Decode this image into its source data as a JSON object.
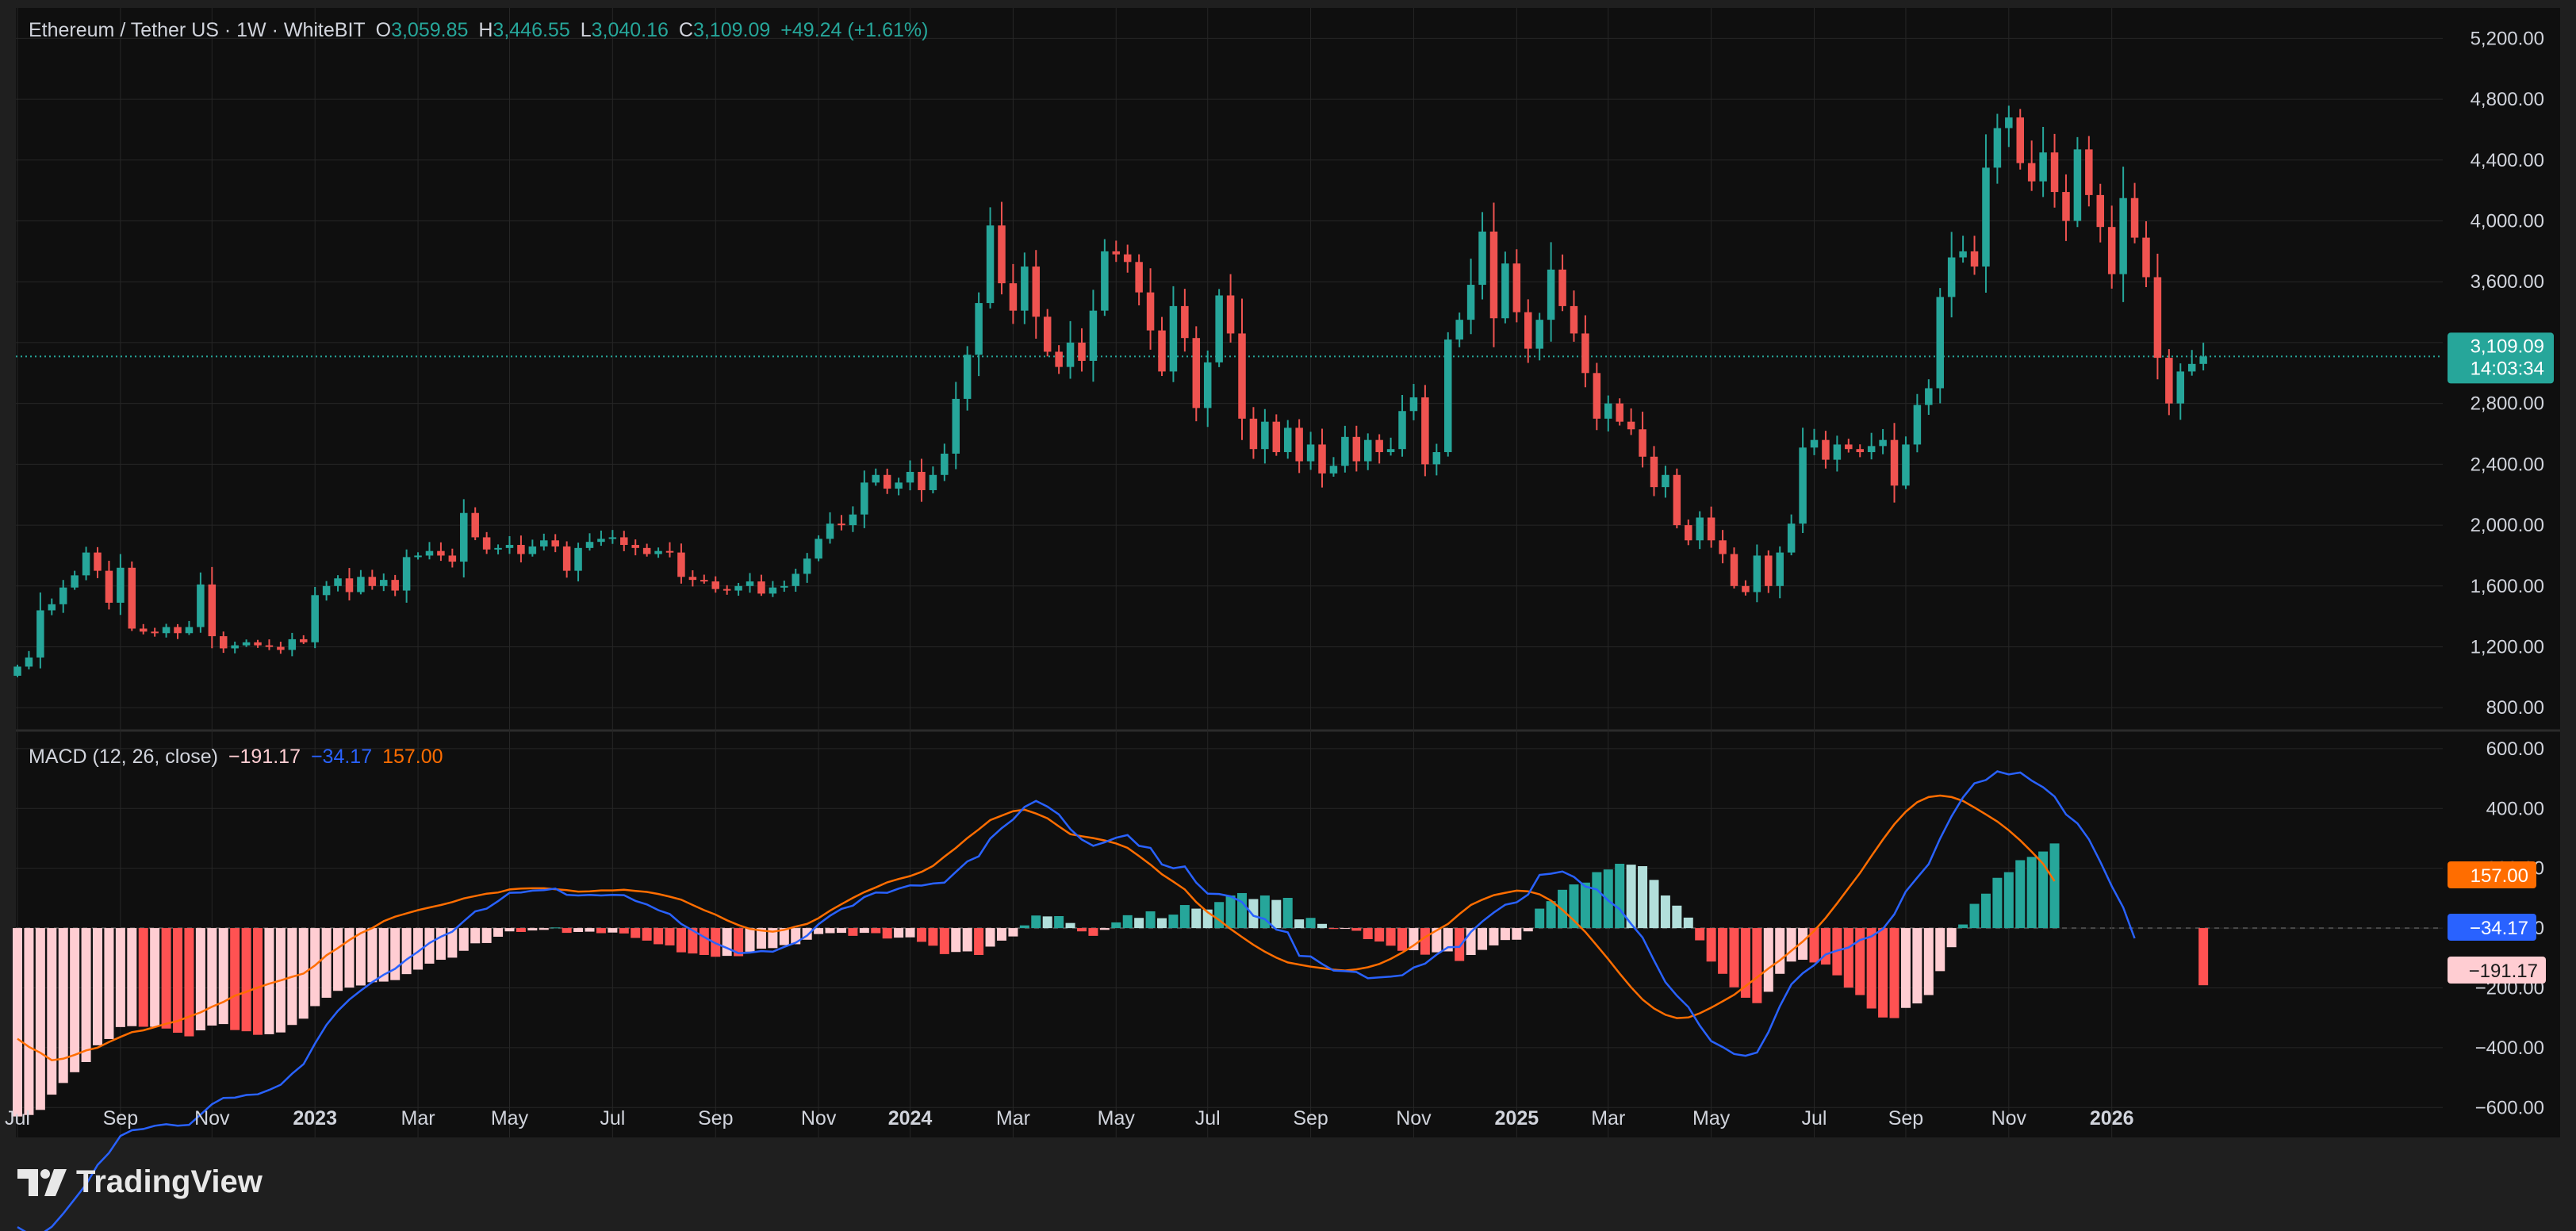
{
  "colors": {
    "up": "#26a69a",
    "down": "#ef5350",
    "macd": "#2962ff",
    "signal": "#ff6d00",
    "hist_up_strong": "#26a69a",
    "hist_up_weak": "#b2dfdb",
    "hist_down_strong": "#ff5252",
    "hist_down_weak": "#ffcdd2",
    "background": "#0f0f0f",
    "grid": "#262626",
    "text": "#d1d4dc"
  },
  "legend": {
    "symbol": "Ethereum / Tether US · 1W · WhiteBIT",
    "o_label": "O",
    "o_value": "3,059.85",
    "h_label": "H",
    "h_value": "3,446.55",
    "l_label": "L",
    "l_value": "3,040.16",
    "c_label": "C",
    "c_value": "3,109.09",
    "change": "+49.24 (+1.61%)"
  },
  "macd_legend": {
    "name": "MACD (12, 26, close)",
    "hist": "−191.17",
    "macd": "−34.17",
    "signal": "157.00"
  },
  "price_badge": {
    "price": "3,109.09",
    "countdown": "14:03:34"
  },
  "macd_badges": {
    "signal": "157.00",
    "macd": "−34.17",
    "hist": "−191.17"
  },
  "brand": {
    "name": "TradingView"
  },
  "chart_data": [
    {
      "type": "candlestick",
      "title": "Ethereum / Tether US · 1W · WhiteBIT",
      "interval": "1W",
      "y_ticks": [
        "5,200.00",
        "4,800.00",
        "4,400.00",
        "4,000.00",
        "3,600.00",
        "3,200.00",
        "2,800.00",
        "2,400.00",
        "2,000.00",
        "1,600.00",
        "1,200.00",
        "800.00"
      ],
      "y_tick_values": [
        5200,
        4800,
        4400,
        4000,
        3600,
        3200,
        2800,
        2400,
        2000,
        1600,
        1200,
        800
      ],
      "ylim": [
        650,
        5400
      ],
      "x_ticks": [
        {
          "label": "Jul",
          "i": 0
        },
        {
          "label": "Sep",
          "i": 9
        },
        {
          "label": "Nov",
          "i": 17
        },
        {
          "label": "2023",
          "i": 26,
          "bold": true
        },
        {
          "label": "Mar",
          "i": 35
        },
        {
          "label": "May",
          "i": 43
        },
        {
          "label": "Jul",
          "i": 52
        },
        {
          "label": "Sep",
          "i": 61
        },
        {
          "label": "Nov",
          "i": 70
        },
        {
          "label": "2024",
          "i": 78,
          "bold": true
        },
        {
          "label": "Mar",
          "i": 87
        },
        {
          "label": "May",
          "i": 96
        },
        {
          "label": "Jul",
          "i": 104
        },
        {
          "label": "Sep",
          "i": 113
        },
        {
          "label": "Nov",
          "i": 122
        },
        {
          "label": "2025",
          "i": 131,
          "bold": true
        },
        {
          "label": "Mar",
          "i": 139
        },
        {
          "label": "May",
          "i": 148
        },
        {
          "label": "Jul",
          "i": 157
        },
        {
          "label": "Sep",
          "i": 165
        },
        {
          "label": "Nov",
          "i": 174
        },
        {
          "label": "2026",
          "i": 183,
          "bold": true
        }
      ],
      "last_price": 3109.09,
      "closes": [
        1070,
        1130,
        1440,
        1480,
        1590,
        1670,
        1820,
        1700,
        1490,
        1720,
        1320,
        1300,
        1290,
        1330,
        1290,
        1330,
        1610,
        1270,
        1190,
        1210,
        1230,
        1210,
        1200,
        1180,
        1250,
        1230,
        1540,
        1600,
        1650,
        1560,
        1660,
        1600,
        1640,
        1570,
        1790,
        1800,
        1830,
        1800,
        1760,
        2080,
        1920,
        1840,
        1850,
        1870,
        1810,
        1860,
        1900,
        1860,
        1700,
        1850,
        1890,
        1910,
        1920,
        1870,
        1850,
        1810,
        1830,
        1820,
        1660,
        1640,
        1630,
        1580,
        1570,
        1600,
        1630,
        1550,
        1590,
        1600,
        1680,
        1780,
        1910,
        2010,
        2000,
        2070,
        2280,
        2330,
        2240,
        2280,
        2350,
        2230,
        2330,
        2470,
        2830,
        3120,
        3460,
        3970,
        3590,
        3410,
        3700,
        3370,
        3140,
        3040,
        3200,
        3080,
        3410,
        3800,
        3780,
        3730,
        3530,
        3280,
        3010,
        3440,
        3230,
        2770,
        3070,
        3510,
        3260,
        2700,
        2500,
        2680,
        2480,
        2640,
        2420,
        2530,
        2340,
        2390,
        2580,
        2420,
        2560,
        2480,
        2500,
        2750,
        2840,
        2400,
        2480,
        3220,
        3350,
        3580,
        3930,
        3360,
        3720,
        3400,
        3160,
        3350,
        3680,
        3440,
        3260,
        3000,
        2700,
        2800,
        2680,
        2630,
        2450,
        2250,
        2330,
        2000,
        1900,
        2050,
        1900,
        1810,
        1600,
        1560,
        1800,
        1600,
        1820,
        2010,
        2510,
        2560,
        2430,
        2530,
        2500,
        2480,
        2520,
        2560,
        2260,
        2530,
        2790,
        2900,
        3500,
        3760,
        3800,
        3700,
        4350,
        4610,
        4680,
        4380,
        4260,
        4450,
        4190,
        4000,
        4470,
        4170,
        3960,
        3650,
        4150,
        3890,
        3630,
        3100,
        2800,
        3010,
        3059.85,
        3109.09
      ],
      "macd": [
        -1000,
        -1022,
        -1025,
        -999,
        -955,
        -906,
        -857,
        -792,
        -752,
        -695,
        -676,
        -672,
        -661,
        -656,
        -661,
        -658,
        -624,
        -589,
        -568,
        -567,
        -558,
        -556,
        -541,
        -524,
        -487,
        -455,
        -386,
        -324,
        -277,
        -239,
        -209,
        -181,
        -156,
        -136,
        -105,
        -79,
        -50,
        -29,
        -12,
        23,
        56,
        65,
        90,
        118,
        119,
        125,
        127,
        132,
        111,
        109,
        111,
        109,
        111,
        110,
        91,
        79,
        60,
        47,
        14,
        -8,
        -30,
        -51,
        -67,
        -84,
        -82,
        -77,
        -79,
        -63,
        -49,
        -25,
        13,
        41,
        64,
        75,
        104,
        119,
        118,
        132,
        143,
        142,
        149,
        152,
        188,
        223,
        240,
        299,
        334,
        363,
        405,
        425,
        406,
        380,
        331,
        296,
        275,
        287,
        302,
        311,
        275,
        268,
        213,
        200,
        206,
        152,
        115,
        114,
        106,
        87,
        41,
        30,
        -5,
        -14,
        -93,
        -95,
        -120,
        -142,
        -144,
        -147,
        -168,
        -165,
        -162,
        -158,
        -132,
        -119,
        -89,
        -64,
        -63,
        -13,
        22,
        52,
        78,
        86,
        112,
        178,
        182,
        189,
        171,
        139,
        129,
        92,
        63,
        14,
        -32,
        -108,
        -181,
        -226,
        -264,
        -326,
        -378,
        -398,
        -421,
        -427,
        -416,
        -348,
        -261,
        -188,
        -151,
        -124,
        -88,
        -75,
        -65,
        -40,
        -28,
        -3,
        46,
        122,
        169,
        214,
        299,
        374,
        437,
        484,
        495,
        524,
        514,
        520,
        493,
        471,
        440,
        380,
        350,
        297,
        221,
        140,
        69,
        -34.17
      ],
      "signal": [
        -370,
        -397,
        -417,
        -442,
        -437,
        -424,
        -409,
        -400,
        -381,
        -364,
        -348,
        -342,
        -331,
        -320,
        -311,
        -296,
        -282,
        -263,
        -247,
        -226,
        -213,
        -199,
        -186,
        -175,
        -163,
        -152,
        -125,
        -91,
        -67,
        -40,
        -17,
        0,
        23,
        38,
        49,
        60,
        69,
        77,
        87,
        99,
        107,
        115,
        119,
        129,
        132,
        133,
        133,
        130,
        127,
        122,
        123,
        126,
        126,
        128,
        124,
        121,
        114,
        105,
        95,
        77,
        60,
        45,
        26,
        10,
        -3,
        -8,
        -12,
        -6,
        5,
        14,
        33,
        58,
        80,
        101,
        120,
        136,
        153,
        164,
        174,
        188,
        208,
        239,
        268,
        301,
        330,
        361,
        376,
        391,
        396,
        383,
        367,
        340,
        314,
        307,
        301,
        293,
        283,
        268,
        241,
        212,
        180,
        155,
        129,
        87,
        53,
        27,
        -3,
        -30,
        -56,
        -79,
        -99,
        -115,
        -122,
        -129,
        -134,
        -139,
        -142,
        -138,
        -131,
        -120,
        -103,
        -82,
        -58,
        -30,
        -8,
        14,
        47,
        77,
        95,
        110,
        118,
        125,
        123,
        113,
        92,
        61,
        25,
        -13,
        -58,
        -104,
        -152,
        -198,
        -239,
        -269,
        -290,
        -301,
        -299,
        -285,
        -266,
        -245,
        -223,
        -194,
        -165,
        -135,
        -108,
        -76,
        -45,
        -9,
        34,
        83,
        134,
        184,
        241,
        296,
        347,
        389,
        421,
        438,
        443,
        438,
        425,
        403,
        380,
        356,
        327,
        293,
        255,
        215,
        157
      ]
    },
    {
      "type": "histogram",
      "title": "MACD (12, 26, close)",
      "series": [
        {
          "name": "MACD",
          "color": "#2962ff"
        },
        {
          "name": "Signal",
          "color": "#ff6d00"
        },
        {
          "name": "Histogram"
        }
      ],
      "y_ticks": [
        "600.00",
        "400.00",
        "200.00",
        "0.00",
        "−200.00",
        "−400.00",
        "−600.00"
      ],
      "y_tick_values": [
        600,
        400,
        200,
        0,
        -200,
        -400,
        -600
      ],
      "ylim": [
        -700,
        650
      ],
      "last": {
        "histogram": -191.17,
        "macd": -34.17,
        "signal": 157.0
      }
    }
  ]
}
